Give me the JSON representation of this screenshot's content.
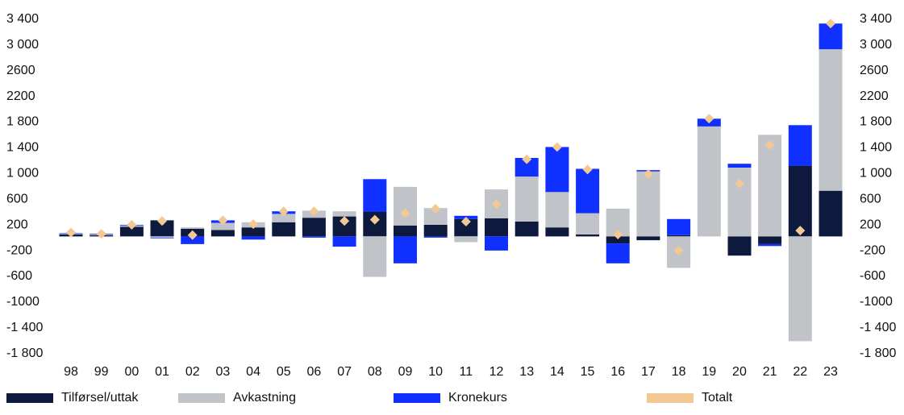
{
  "chart_data": {
    "type": "bar",
    "stacked": true,
    "categories": [
      "98",
      "99",
      "00",
      "01",
      "02",
      "03",
      "04",
      "05",
      "06",
      "07",
      "08",
      "09",
      "10",
      "11",
      "12",
      "13",
      "14",
      "15",
      "16",
      "17",
      "18",
      "19",
      "20",
      "21",
      "22",
      "23"
    ],
    "series": [
      {
        "name": "Tilførsel/uttak",
        "color": "#0d1a3d",
        "values": [
          30,
          20,
          150,
          250,
          120,
          100,
          140,
          220,
          290,
          310,
          380,
          170,
          180,
          270,
          280,
          230,
          140,
          30,
          -110,
          -60,
          20,
          0,
          -300,
          -120,
          1100,
          710
        ]
      },
      {
        "name": "Avkastning",
        "color": "#c0c3c7",
        "values": [
          10,
          15,
          20,
          -20,
          20,
          110,
          80,
          130,
          110,
          80,
          -630,
          600,
          260,
          -90,
          450,
          700,
          550,
          330,
          430,
          1010,
          -490,
          1710,
          1070,
          1580,
          -1630,
          2200
        ]
      },
      {
        "name": "Kronekurs",
        "color": "#1030ff",
        "values": [
          10,
          5,
          10,
          -10,
          -120,
          40,
          -50,
          40,
          -20,
          -160,
          510,
          -420,
          -20,
          50,
          -220,
          290,
          700,
          690,
          -310,
          20,
          250,
          120,
          60,
          -30,
          630,
          400
        ]
      }
    ],
    "totals": {
      "name": "Totalt",
      "color": "#f2c994",
      "values": [
        60,
        40,
        180,
        240,
        20,
        250,
        190,
        390,
        390,
        240,
        260,
        360,
        430,
        230,
        500,
        1200,
        1390,
        1040,
        30,
        970,
        -220,
        1830,
        820,
        1420,
        90,
        3310
      ]
    },
    "yticks": [
      3400,
      3000,
      2600,
      2200,
      1800,
      1400,
      1000,
      600,
      200,
      -200,
      -600,
      -1000,
      -1400,
      -1800
    ],
    "ytick_labels": [
      "3 400",
      "3 000",
      "2600",
      "2200",
      "1 800",
      "1 400",
      "1 000",
      "600",
      "200",
      "-200",
      "-600",
      "-1000",
      "-1 400",
      "-1 800"
    ],
    "ylim": [
      -1800,
      3400
    ],
    "grid": false,
    "legend_position": "bottom",
    "title": "",
    "xlabel": "",
    "ylabel": ""
  },
  "legend": [
    {
      "label": "Tilførsel/uttak",
      "color": "#0d1a3d"
    },
    {
      "label": "Avkastning",
      "color": "#c0c3c7"
    },
    {
      "label": "Kronekurs",
      "color": "#1030ff"
    },
    {
      "label": "Totalt",
      "color": "#f2c994"
    }
  ]
}
